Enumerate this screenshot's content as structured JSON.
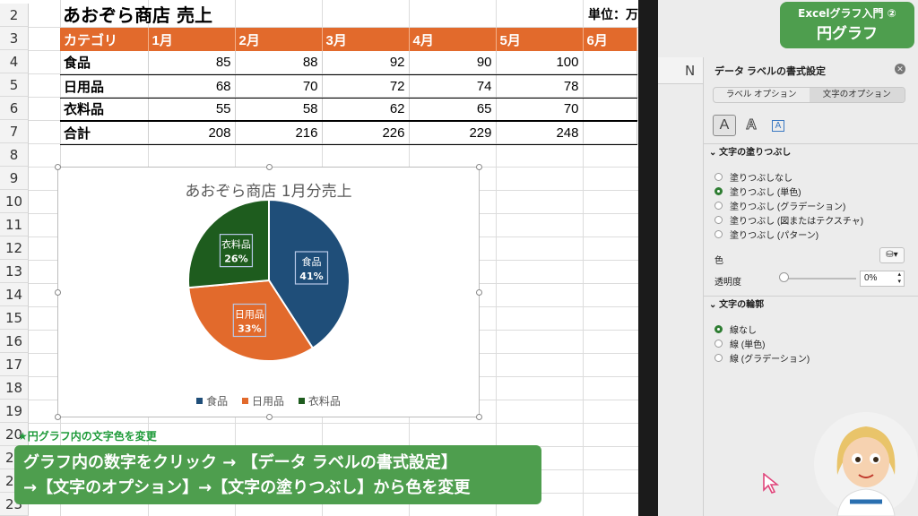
{
  "sheet": {
    "row_numbers": [
      "2",
      "3",
      "4",
      "5",
      "6",
      "7",
      "8",
      "9",
      "10",
      "11",
      "12",
      "13",
      "14",
      "15",
      "16",
      "17",
      "18",
      "19",
      "20",
      "21",
      "22",
      "23"
    ],
    "title": "あおぞら商店 売上",
    "unit_label": "単位：万",
    "table": {
      "headers": [
        "カテゴリ",
        "1月",
        "2月",
        "3月",
        "4月",
        "5月",
        "6月"
      ],
      "rows": [
        {
          "label": "食品",
          "values": [
            "85",
            "88",
            "92",
            "90",
            "100",
            ""
          ]
        },
        {
          "label": "日用品",
          "values": [
            "68",
            "70",
            "72",
            "74",
            "78",
            ""
          ]
        },
        {
          "label": "衣料品",
          "values": [
            "55",
            "58",
            "62",
            "65",
            "70",
            ""
          ]
        },
        {
          "label": "合計",
          "values": [
            "208",
            "216",
            "226",
            "229",
            "248",
            ""
          ]
        }
      ]
    }
  },
  "chart_data": {
    "type": "pie",
    "title": "あおぞら商店 1月分売上",
    "categories": [
      "食品",
      "日用品",
      "衣料品"
    ],
    "values": [
      85,
      68,
      55
    ],
    "percent_labels": [
      "41%",
      "33%",
      "26%"
    ],
    "colors": [
      "#1f4e79",
      "#e26a2c",
      "#1e5c1e"
    ],
    "legend": "bottom"
  },
  "overlay": {
    "note": "★円グラフ内の文字色を変更",
    "instruction_line1": "グラフ内の数字をクリック → 【データ ラベルの書式設定】",
    "instruction_line2": "→【文字のオプション】→【文字の塗りつぶし】から色を変更"
  },
  "badge": {
    "line1": "Excelグラフ入門 ②",
    "line2": "円グラフ"
  },
  "pane": {
    "column_letter": "N",
    "title": "データ ラベルの書式設定",
    "tabs": [
      "ラベル オプション",
      "文字のオプション"
    ],
    "active_tab": 1,
    "section_fill": "文字の塗りつぶし",
    "fill_options": [
      "塗りつぶしなし",
      "塗りつぶし (単色)",
      "塗りつぶし (グラデーション)",
      "塗りつぶし (図またはテクスチャ)",
      "塗りつぶし (パターン)"
    ],
    "fill_selected": 1,
    "color_label": "色",
    "transparency_label": "透明度",
    "transparency_value": "0%",
    "section_outline": "文字の輪郭",
    "outline_options": [
      "線なし",
      "線 (単色)",
      "線 (グラデーション)"
    ],
    "outline_selected": 0
  },
  "icons": {
    "close": "close-icon",
    "text-fill": "text-fill-icon",
    "text-effects": "text-effects-icon",
    "textbox": "textbox-icon",
    "paint-bucket": "paint-bucket-icon",
    "cursor": "mouse-cursor-icon"
  }
}
